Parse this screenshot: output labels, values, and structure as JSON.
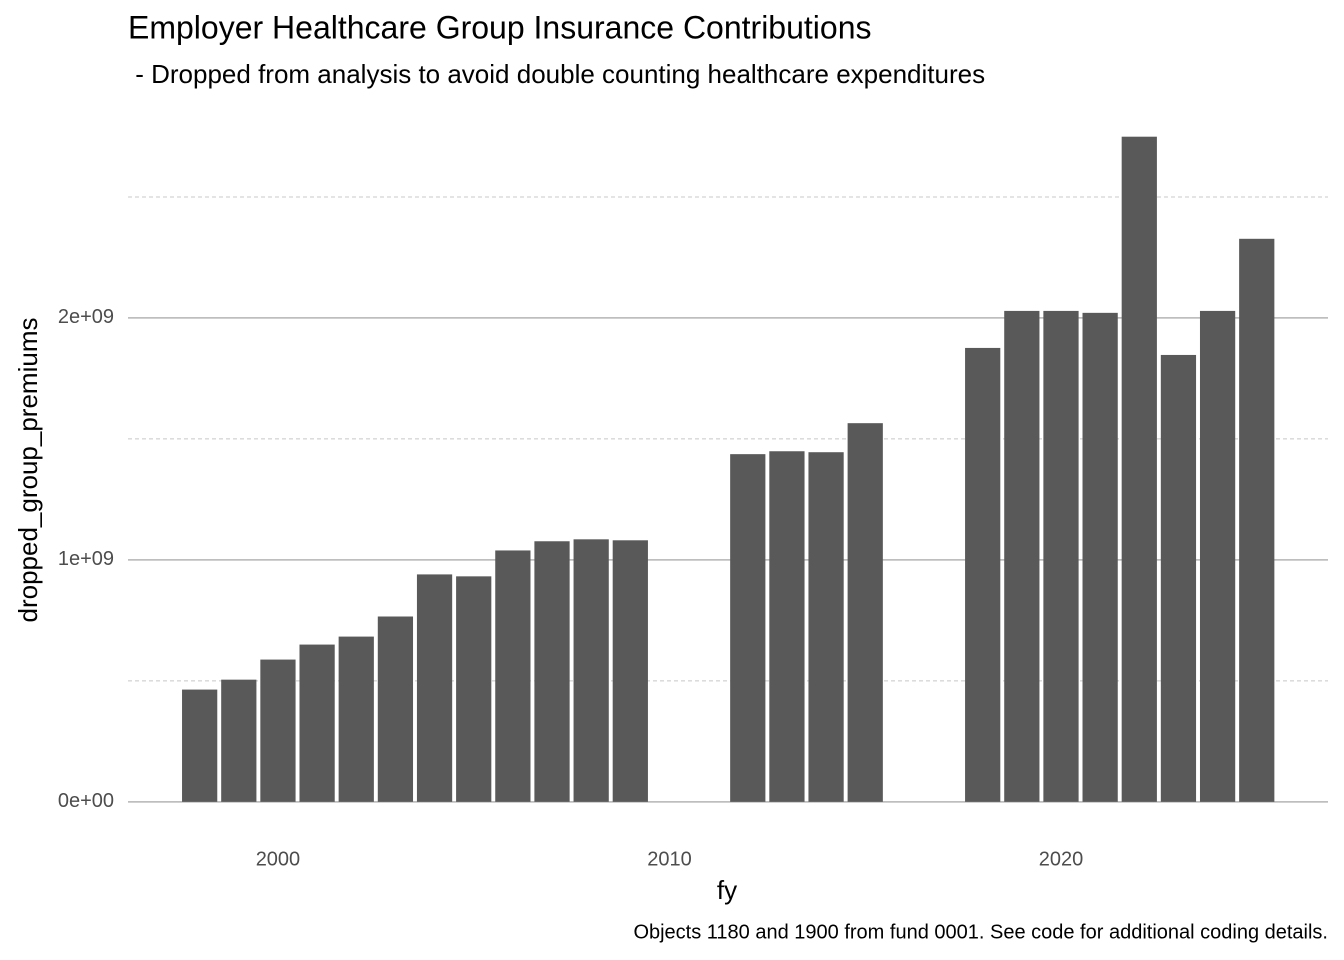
{
  "chart_data": {
    "type": "bar",
    "title": "Employer Healthcare Group Insurance Contributions",
    "subtitle": " - Dropped from analysis to avoid double counting healthcare expenditures",
    "x_label": "fy",
    "y_label": "dropped_group_premiums",
    "caption": "Objects 1180 and 1900 from fund 0001. See code for additional coding details.",
    "x": [
      1998,
      1999,
      2000,
      2001,
      2002,
      2003,
      2004,
      2005,
      2006,
      2007,
      2008,
      2009,
      2012,
      2013,
      2014,
      2015,
      2018,
      2019,
      2020,
      2021,
      2022,
      2023,
      2024,
      2025
    ],
    "values": [
      464000000,
      505000000,
      588000000,
      650000000,
      683000000,
      766000000,
      940000000,
      932000000,
      1039000000,
      1077000000,
      1085000000,
      1081000000,
      1437000000,
      1449000000,
      1445000000,
      1565000000,
      1876000000,
      2029000000,
      2029000000,
      2021000000,
      2749000000,
      1847000000,
      2029000000,
      2327000000
    ],
    "color": "#595959",
    "xlim": [
      1996.17,
      2026.82
    ],
    "xticks": [
      2000,
      2010,
      2020
    ],
    "ylim": [
      -137000000,
      2880000000
    ],
    "yticks": [
      {
        "value": 0,
        "label": "0e+00"
      },
      {
        "value": 1000000000,
        "label": "1e+09"
      },
      {
        "value": 2000000000,
        "label": "2e+09"
      }
    ],
    "yminorticks": [
      500000000,
      1500000000,
      2500000000
    ],
    "grid": true
  }
}
